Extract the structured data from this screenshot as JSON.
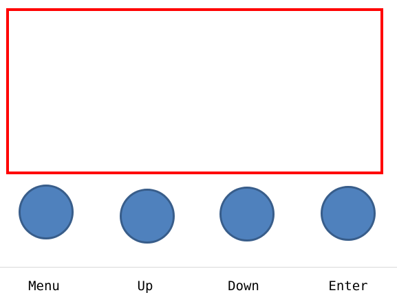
{
  "colors": {
    "screen_border": "#ff0000",
    "button_fill": "#4f81bd",
    "button_border": "#385d8a"
  },
  "buttons": [
    {
      "label": "Menu"
    },
    {
      "label": "Up"
    },
    {
      "label": "Down"
    },
    {
      "label": "Enter"
    }
  ]
}
